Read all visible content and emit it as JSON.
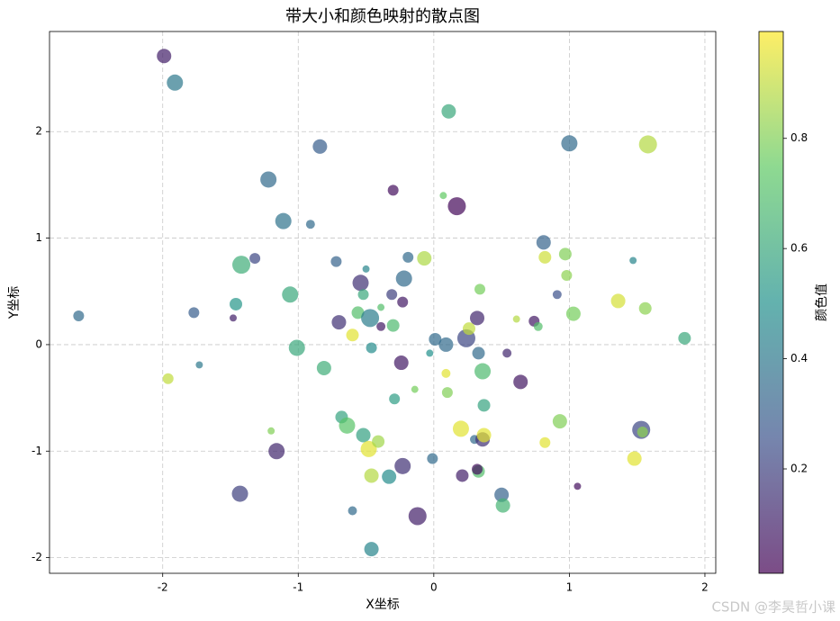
{
  "chart_data": {
    "type": "scatter",
    "title": "带大小和颜色映射的散点图",
    "x_label": "X坐标",
    "y_label": "Y坐标",
    "watermark": "CSDN @李昊哲小课",
    "colormap": "viridis",
    "alpha": 0.7,
    "grid": true,
    "xlim": [
      -2.835,
      2.08
    ],
    "ylim": [
      -2.147,
      2.94
    ],
    "xticks": [
      -2,
      -1,
      0,
      1,
      2
    ],
    "yticks": [
      -2,
      -1,
      0,
      1,
      2
    ],
    "colorbar": {
      "label": "颜色值",
      "lim": [
        0.0105,
        0.994
      ],
      "ticks": [
        0.2,
        0.4,
        0.6,
        0.8
      ]
    },
    "x": [
      -1.99,
      -1.91,
      -0.84,
      -1.22,
      -0.3,
      0.11,
      0.07,
      0.17,
      -1.11,
      -0.91,
      1.0,
      1.58,
      0.81,
      0.97,
      0.82,
      1.47,
      0.98,
      0.91,
      1.03,
      1.36,
      1.56,
      1.85,
      0.61,
      0.74,
      0.77,
      0.54,
      0.34,
      -0.07,
      -0.19,
      -0.22,
      -0.72,
      -0.5,
      -0.54,
      -0.52,
      -0.31,
      -0.23,
      -0.39,
      -0.56,
      -0.47,
      -0.3,
      -0.39,
      -0.7,
      -0.6,
      -0.46,
      -1.32,
      -1.42,
      -1.06,
      -1.46,
      -1.77,
      -1.48,
      -2.62,
      -1.73,
      -1.01,
      -0.81,
      -1.96,
      0.01,
      0.09,
      0.24,
      0.26,
      0.32,
      0.33,
      -0.03,
      -0.24,
      0.09,
      0.36,
      -0.14,
      0.1,
      -0.29,
      0.37,
      0.64,
      -0.68,
      -0.64,
      -0.52,
      -1.2,
      -1.16,
      -0.48,
      -0.41,
      0.2,
      0.3,
      0.36,
      0.37,
      0.93,
      0.82,
      1.53,
      1.54,
      1.48,
      -0.01,
      -0.23,
      -0.46,
      -0.33,
      0.21,
      0.33,
      0.32,
      1.06,
      -1.43,
      0.5,
      0.51,
      -0.6,
      -0.12,
      -0.46
    ],
    "values": [
      2.71,
      2.46,
      1.86,
      1.55,
      1.45,
      2.19,
      1.4,
      1.3,
      1.16,
      1.13,
      1.89,
      1.88,
      0.96,
      0.85,
      0.82,
      0.79,
      0.65,
      0.47,
      0.29,
      0.41,
      0.34,
      0.06,
      0.24,
      0.22,
      0.17,
      -0.08,
      0.52,
      0.81,
      0.82,
      0.62,
      0.78,
      0.71,
      0.58,
      0.47,
      0.47,
      0.4,
      0.35,
      0.3,
      0.25,
      0.18,
      0.17,
      0.21,
      0.09,
      -0.03,
      0.81,
      0.75,
      0.47,
      0.38,
      0.3,
      0.25,
      0.27,
      -0.19,
      -0.03,
      -0.22,
      -0.32,
      0.05,
      0.0,
      0.06,
      0.15,
      0.25,
      -0.08,
      -0.08,
      -0.17,
      -0.27,
      -0.25,
      -0.42,
      -0.45,
      -0.51,
      -0.57,
      -0.35,
      -0.68,
      -0.76,
      -0.85,
      -0.81,
      -1.0,
      -0.98,
      -0.91,
      -0.79,
      -0.89,
      -0.89,
      -0.85,
      -0.72,
      -0.92,
      -0.8,
      -0.82,
      -1.07,
      -1.07,
      -1.14,
      -1.23,
      -1.24,
      -1.23,
      -1.19,
      -1.17,
      -1.33,
      -1.4,
      -1.41,
      -1.51,
      -1.56,
      -1.61,
      -1.92
    ],
    "color_values": [
      0.1,
      0.4,
      0.3,
      0.35,
      0.05,
      0.6,
      0.75,
      0.03,
      0.38,
      0.35,
      0.35,
      0.88,
      0.32,
      0.8,
      0.92,
      0.45,
      0.82,
      0.25,
      0.78,
      0.93,
      0.82,
      0.6,
      0.88,
      0.08,
      0.7,
      0.12,
      0.78,
      0.87,
      0.35,
      0.35,
      0.32,
      0.45,
      0.15,
      0.6,
      0.2,
      0.08,
      0.7,
      0.7,
      0.42,
      0.68,
      0.08,
      0.15,
      0.95,
      0.48,
      0.22,
      0.62,
      0.6,
      0.52,
      0.3,
      0.1,
      0.35,
      0.4,
      0.6,
      0.62,
      0.9,
      0.35,
      0.35,
      0.22,
      0.9,
      0.12,
      0.35,
      0.5,
      0.08,
      0.95,
      0.68,
      0.78,
      0.8,
      0.55,
      0.58,
      0.07,
      0.58,
      0.72,
      0.57,
      0.8,
      0.12,
      0.95,
      0.85,
      0.95,
      0.35,
      0.15,
      0.95,
      0.8,
      0.95,
      0.22,
      0.82,
      0.95,
      0.35,
      0.15,
      0.88,
      0.48,
      0.1,
      0.7,
      0.05,
      0.05,
      0.2,
      0.32,
      0.65,
      0.35,
      0.1,
      0.45
    ],
    "sizes": [
      114,
      144,
      114,
      144,
      64,
      114,
      28,
      178,
      144,
      44,
      144,
      178,
      114,
      87,
      87,
      28,
      64,
      44,
      114,
      114,
      87,
      87,
      28,
      64,
      44,
      44,
      64,
      114,
      64,
      144,
      64,
      28,
      144,
      64,
      64,
      64,
      28,
      87,
      178,
      87,
      44,
      114,
      87,
      64,
      64,
      178,
      144,
      87,
      64,
      28,
      64,
      28,
      144,
      114,
      64,
      87,
      114,
      178,
      87,
      114,
      87,
      28,
      114,
      44,
      144,
      28,
      64,
      64,
      87,
      114,
      87,
      144,
      114,
      28,
      144,
      144,
      87,
      144,
      44,
      114,
      114,
      114,
      64,
      178,
      64,
      114,
      64,
      144,
      114,
      114,
      87,
      87,
      64,
      28,
      144,
      114,
      114,
      44,
      178,
      114
    ]
  }
}
